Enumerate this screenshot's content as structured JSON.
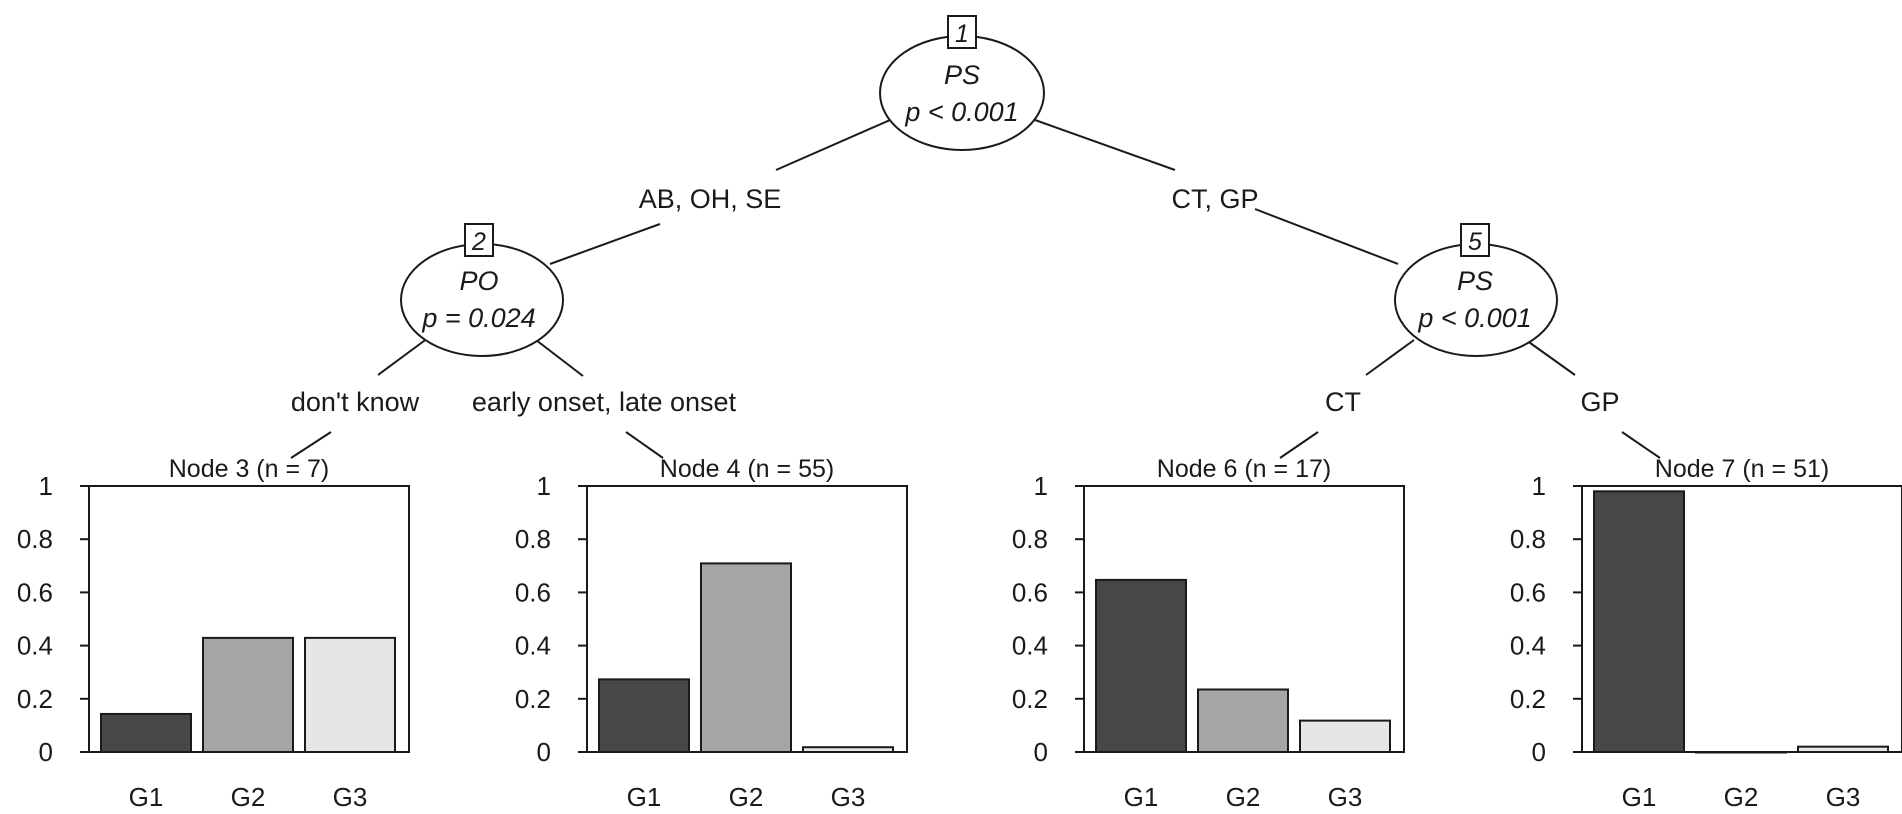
{
  "inner_nodes": [
    {
      "id": "1",
      "variable": "PS",
      "p_value": "p < 0.001"
    },
    {
      "id": "2",
      "variable": "PO",
      "p_value": "p = 0.024"
    },
    {
      "id": "5",
      "variable": "PS",
      "p_value": "p < 0.001"
    }
  ],
  "edge_labels": [
    {
      "text": "AB, OH, SE"
    },
    {
      "text": "CT, GP"
    },
    {
      "text": "don't know"
    },
    {
      "text": "early onset, late onset"
    },
    {
      "text": "CT"
    },
    {
      "text": "GP"
    }
  ],
  "bar_colors": [
    "#474747",
    "#a6a6a6",
    "#e6e6e6"
  ],
  "chart_data": [
    {
      "type": "bar",
      "title": "Node 3 (n = 7)",
      "categories": [
        "G1",
        "G2",
        "G3"
      ],
      "values": [
        0.143,
        0.429,
        0.429
      ],
      "ylim": [
        0,
        1
      ],
      "yticks": [
        "0",
        "0.2",
        "0.4",
        "0.6",
        "0.8",
        "1"
      ]
    },
    {
      "type": "bar",
      "title": "Node 4 (n = 55)",
      "categories": [
        "G1",
        "G2",
        "G3"
      ],
      "values": [
        0.273,
        0.709,
        0.018
      ],
      "ylim": [
        0,
        1
      ],
      "yticks": [
        "0",
        "0.2",
        "0.4",
        "0.6",
        "0.8",
        "1"
      ]
    },
    {
      "type": "bar",
      "title": "Node 6 (n = 17)",
      "categories": [
        "G1",
        "G2",
        "G3"
      ],
      "values": [
        0.647,
        0.235,
        0.118
      ],
      "ylim": [
        0,
        1
      ],
      "yticks": [
        "0",
        "0.2",
        "0.4",
        "0.6",
        "0.8",
        "1"
      ]
    },
    {
      "type": "bar",
      "title": "Node 7 (n = 51)",
      "categories": [
        "G1",
        "G2",
        "G3"
      ],
      "values": [
        0.98,
        0.0,
        0.02
      ],
      "ylim": [
        0,
        1
      ],
      "yticks": [
        "0",
        "0.2",
        "0.4",
        "0.6",
        "0.8",
        "1"
      ]
    }
  ]
}
